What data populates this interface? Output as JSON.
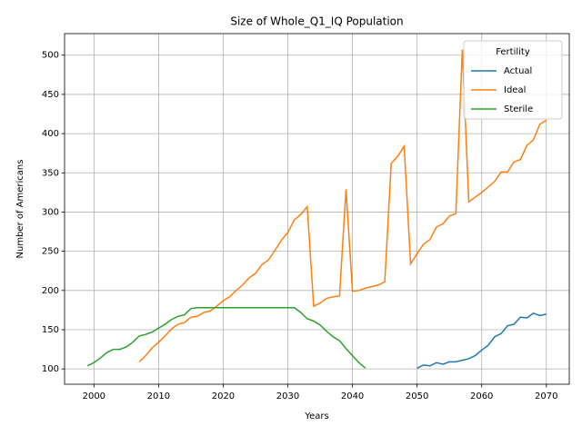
{
  "chart_data": {
    "type": "line",
    "title": "Size of Whole_Q1_IQ Population",
    "xlabel": "Years",
    "ylabel": "Number of Americans",
    "legend_title": "Fertility",
    "legend_loc": "upper right",
    "grid": true,
    "x": [
      1999,
      2000,
      2001,
      2002,
      2003,
      2004,
      2005,
      2006,
      2007,
      2008,
      2009,
      2010,
      2011,
      2012,
      2013,
      2014,
      2015,
      2016,
      2017,
      2018,
      2019,
      2020,
      2021,
      2022,
      2023,
      2024,
      2025,
      2026,
      2027,
      2028,
      2029,
      2030,
      2031,
      2032,
      2033,
      2034,
      2035,
      2036,
      2037,
      2038,
      2039,
      2040,
      2041,
      2042,
      2043,
      2044,
      2045,
      2046,
      2047,
      2048,
      2049,
      2050,
      2051,
      2052,
      2053,
      2054,
      2055,
      2056,
      2057,
      2058,
      2059,
      2060,
      2061,
      2062,
      2063,
      2064,
      2065,
      2066,
      2067,
      2068,
      2069,
      2070
    ],
    "series": [
      {
        "name": "Actual",
        "color": "#1f77b4",
        "values": [
          null,
          null,
          null,
          null,
          null,
          null,
          null,
          null,
          null,
          null,
          null,
          null,
          null,
          null,
          null,
          null,
          null,
          null,
          null,
          null,
          null,
          null,
          null,
          null,
          null,
          null,
          null,
          null,
          null,
          null,
          null,
          null,
          null,
          null,
          null,
          null,
          null,
          null,
          null,
          null,
          null,
          null,
          null,
          null,
          null,
          null,
          null,
          null,
          null,
          null,
          null,
          101,
          105,
          104,
          108,
          106,
          109,
          109,
          111,
          113,
          117,
          124,
          130,
          141,
          145,
          155,
          157,
          166,
          165,
          171,
          168,
          170
        ]
      },
      {
        "name": "Ideal",
        "color": "#ff7f0e",
        "values": [
          null,
          null,
          null,
          null,
          null,
          null,
          null,
          null,
          109,
          117,
          127,
          134,
          142,
          151,
          157,
          159,
          166,
          167,
          172,
          174,
          180,
          187,
          192,
          200,
          207,
          216,
          222,
          233,
          239,
          251,
          264,
          274,
          290,
          297,
          307,
          180,
          184,
          190,
          192,
          193,
          329,
          199,
          200,
          203,
          205,
          207,
          211,
          362,
          371,
          384,
          234,
          247,
          259,
          265,
          281,
          285,
          295,
          298,
          507,
          313,
          319,
          325,
          332,
          339,
          351,
          351,
          364,
          367,
          385,
          392,
          412,
          417
        ]
      },
      {
        "name": "Sterile",
        "color": "#2ca02c",
        "values": [
          104,
          108,
          114,
          121,
          125,
          125,
          128,
          134,
          142,
          144,
          147,
          152,
          157,
          163,
          167,
          169,
          177,
          178,
          178,
          178,
          178,
          178,
          178,
          178,
          178,
          178,
          178,
          178,
          178,
          178,
          178,
          178,
          178,
          172,
          164,
          161,
          156,
          148,
          141,
          136,
          126,
          117,
          108,
          101,
          null,
          null,
          null,
          null,
          null,
          null,
          null,
          null,
          null,
          null,
          null,
          null,
          null,
          null,
          null,
          null,
          null,
          null,
          null,
          null,
          null,
          null,
          null,
          null,
          null,
          null,
          null,
          null
        ]
      }
    ],
    "xlim": [
      1995.45,
      2073.55
    ],
    "xticks": [
      2000,
      2010,
      2020,
      2030,
      2040,
      2050,
      2060,
      2070
    ],
    "ylim": [
      80.5,
      527.5
    ],
    "yticks": [
      100,
      150,
      200,
      250,
      300,
      350,
      400,
      450,
      500
    ]
  }
}
